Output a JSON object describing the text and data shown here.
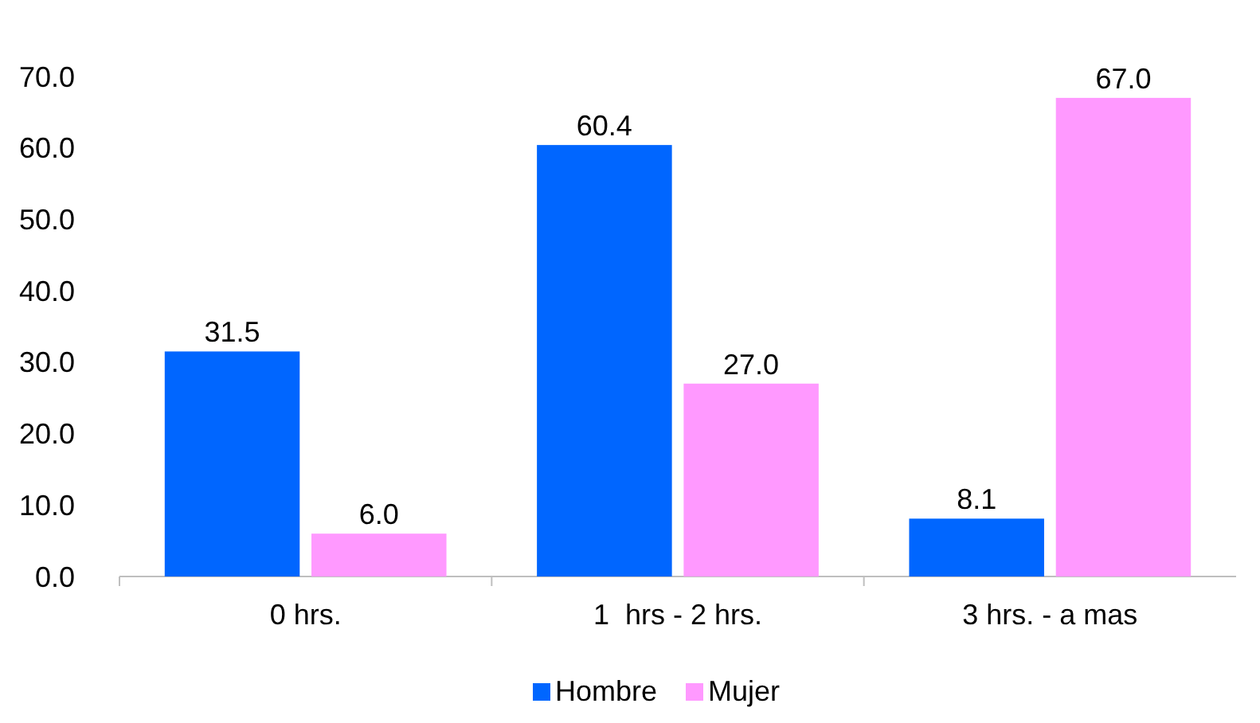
{
  "chart_data": {
    "type": "bar",
    "categories": [
      "0 hrs.",
      "1  hrs - 2 hrs.",
      "3 hrs. - a mas"
    ],
    "series": [
      {
        "name": "Hombre",
        "color": "#0066ff",
        "values": [
          31.5,
          60.4,
          8.1
        ],
        "value_labels": [
          "31.5",
          "60.4",
          "8.1"
        ]
      },
      {
        "name": "Mujer",
        "color": "#ff99ff",
        "values": [
          6.0,
          27.0,
          67.0
        ],
        "value_labels": [
          "6.0",
          "27.0",
          "67.0"
        ]
      }
    ],
    "ylim": [
      0,
      70
    ],
    "yticks": [
      {
        "value": 0,
        "label": "0.0"
      },
      {
        "value": 10,
        "label": "10.0"
      },
      {
        "value": 20,
        "label": "20.0"
      },
      {
        "value": 30,
        "label": "30.0"
      },
      {
        "value": 40,
        "label": "40.0"
      },
      {
        "value": 50,
        "label": "50.0"
      },
      {
        "value": 60,
        "label": "60.0"
      },
      {
        "value": 70,
        "label": "70.0"
      }
    ],
    "grid": false,
    "legend": "bottom"
  }
}
